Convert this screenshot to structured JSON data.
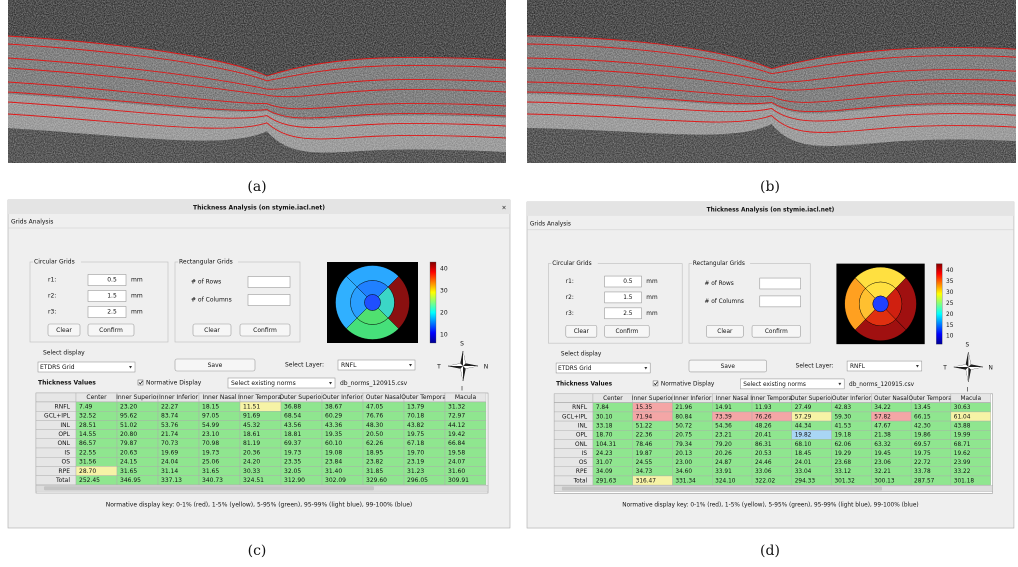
{
  "panels": [
    {
      "label": "(a)"
    },
    {
      "label": "(b)"
    },
    {
      "label": "(c)",
      "window_title": "Thickness Analysis (on stymie.iacl.net)",
      "close": "×",
      "menu": "Grids Analysis",
      "circular": {
        "title": "Circular Grids",
        "fields": [
          {
            "label": "r1:",
            "value": "0.5",
            "unit": "mm"
          },
          {
            "label": "r2:",
            "value": "1.5",
            "unit": "mm"
          },
          {
            "label": "r3:",
            "value": "2.5",
            "unit": "mm"
          }
        ],
        "buttons": [
          "Clear",
          "Confirm"
        ]
      },
      "rectangular": {
        "title": "Rectangular Grids",
        "fields": [
          "# of Rows",
          "# of Columns"
        ],
        "buttons": [
          "Clear",
          "Confirm"
        ]
      },
      "colorbar_ticks": [
        "40",
        "30",
        "20",
        "10"
      ],
      "select_display": "Select display",
      "display_value": "ETDRS Grid",
      "save": "Save",
      "select_layer": "Select Layer:",
      "layer_value": "RNFL",
      "compass": [
        "S",
        "T",
        "N",
        "I"
      ],
      "thickness_title": "Thickness Values",
      "normative": "Normative Display",
      "norms_dropdown": "Select existing norms",
      "norms_file": "db_norms_120915.csv",
      "table": {
        "cell_color": "#8fe68f",
        "header": [
          "",
          "Center",
          "Inner Superior",
          "Inner Inferior",
          "Inner Nasal",
          "Inner Temporal",
          "Outer Superior",
          "Outer Inferior",
          "Outer Nasal",
          "Outer Temporal",
          "Macula"
        ],
        "rows": [
          [
            "RNFL",
            "7.49",
            "23.20",
            "22.27",
            "18.15",
            {
              "value": "11.51",
              "color": "#f6f3a6"
            },
            "36.88",
            "38.67",
            "47.05",
            "13.79",
            "31.32"
          ],
          [
            "GCL+IPL",
            "32.52",
            "95.62",
            "83.74",
            "97.05",
            "91.69",
            "68.54",
            "60.29",
            "76.76",
            "70.18",
            "72.97"
          ],
          [
            "INL",
            "28.51",
            "51.02",
            "53.76",
            "54.99",
            "45.32",
            "43.56",
            "43.36",
            "48.30",
            "43.82",
            "44.12"
          ],
          [
            "OPL",
            "14.55",
            "20.80",
            "21.74",
            "23.10",
            "18.61",
            "18.81",
            "19.35",
            "20.50",
            "19.75",
            "19.42"
          ],
          [
            "ONL",
            "86.57",
            "79.87",
            "70.73",
            "70.98",
            "81.19",
            "69.37",
            "60.10",
            "62.26",
            "67.18",
            "66.84"
          ],
          [
            "IS",
            "22.55",
            "20.63",
            "19.69",
            "19.73",
            "20.36",
            "19.73",
            "19.08",
            "18.95",
            "19.70",
            "19.58"
          ],
          [
            "OS",
            "31.56",
            "24.15",
            "24.04",
            "25.06",
            "24.20",
            "23.35",
            "23.84",
            "23.82",
            "23.19",
            "24.07"
          ],
          [
            "RPE",
            {
              "value": "28.70",
              "color": "#f6f3a6"
            },
            "31.65",
            "31.14",
            "31.65",
            "30.33",
            "32.05",
            "31.40",
            "31.85",
            "31.23",
            "31.60"
          ],
          [
            "Total",
            "252.45",
            "346.95",
            "337.13",
            "340.73",
            "324.51",
            "312.90",
            "302.09",
            "329.60",
            "296.05",
            "309.91"
          ]
        ]
      },
      "key": "Normative display key: 0-1% (red), 1-5% (yellow), 5-95% (green), 95-99% (light blue), 99-100% (blue)"
    },
    {
      "label": "(d)",
      "window_title": "Thickness Analysis (on stymie.iacl.net)",
      "menu": "Grids Analysis",
      "circular": {
        "title": "Circular Grids",
        "fields": [
          {
            "label": "r1:",
            "value": "0.5",
            "unit": "mm"
          },
          {
            "label": "r2:",
            "value": "1.5",
            "unit": "mm"
          },
          {
            "label": "r3:",
            "value": "2.5",
            "unit": "mm"
          }
        ],
        "buttons": [
          "Clear",
          "Confirm"
        ]
      },
      "rectangular": {
        "title": "Rectangular Grids",
        "fields": [
          "# of Rows",
          "# of Columns"
        ],
        "buttons": [
          "Clear",
          "Confirm"
        ]
      },
      "colorbar_ticks": [
        "40",
        "35",
        "30",
        "25",
        "20",
        "15",
        "10"
      ],
      "select_display": "Select display",
      "display_value": "ETDRS Grid",
      "save": "Save",
      "select_layer": "Select Layer:",
      "layer_value": "RNFL",
      "compass": [
        "S",
        "T",
        "N",
        "I"
      ],
      "thickness_title": "Thickness Values",
      "normative": "Normative Display",
      "norms_dropdown": "Select existing norms",
      "norms_file": "db_norms_120915.csv",
      "table": {
        "cell_color": "#8fe68f",
        "header": [
          "",
          "Center",
          "Inner Superior",
          "Inner Inferior",
          "Inner Nasal",
          "Inner Temporal",
          "Outer Superior",
          "Outer Inferior",
          "Outer Nasal",
          "Outer Temporal",
          "Macula"
        ],
        "rows": [
          [
            "RNFL",
            "7.84",
            {
              "value": "15.35",
              "color": "#f4a6a6"
            },
            "21.96",
            "14.91",
            "11.93",
            "27.49",
            "42.83",
            "34.22",
            "13.45",
            "30.63"
          ],
          [
            "GCL+IPL",
            "30.10",
            {
              "value": "71.94",
              "color": "#f4a6a6"
            },
            "80.84",
            {
              "value": "73.39",
              "color": "#f4a6a6"
            },
            {
              "value": "76.26",
              "color": "#f4a6a6"
            },
            {
              "value": "57.29",
              "color": "#f6f3a6"
            },
            "59.30",
            {
              "value": "57.82",
              "color": "#f4a6a6"
            },
            "66.15",
            {
              "value": "61.04",
              "color": "#f6f3a6"
            }
          ],
          [
            "INL",
            "33.18",
            "51.22",
            "50.72",
            "54.36",
            "48.26",
            "44.34",
            "41.53",
            "47.67",
            "42.30",
            "43.88"
          ],
          [
            "OPL",
            "18.70",
            "22.36",
            "20.75",
            "23.21",
            "20.41",
            {
              "value": "19.82",
              "color": "#a9d6f5"
            },
            "19.18",
            "21.38",
            "19.86",
            "19.99"
          ],
          [
            "ONL",
            "104.31",
            "78.46",
            "79.34",
            "79.20",
            "86.31",
            "68.10",
            "62.06",
            "63.32",
            "69.57",
            "68.71"
          ],
          [
            "IS",
            "24.23",
            "19.87",
            "20.13",
            "20.26",
            "20.53",
            "18.45",
            "19.29",
            "19.45",
            "19.75",
            "19.62"
          ],
          [
            "OS",
            "31.07",
            "24.55",
            "23.00",
            "24.87",
            "24.46",
            "24.01",
            "23.68",
            "23.06",
            "22.72",
            "23.99"
          ],
          [
            "RPE",
            "34.09",
            "34.73",
            "34.60",
            "33.91",
            "33.06",
            "33.04",
            "33.12",
            "32.21",
            "33.78",
            "33.22"
          ],
          [
            "Total",
            "291.63",
            {
              "value": "316.47",
              "color": "#f6f3a6"
            },
            "331.34",
            "324.10",
            "322.02",
            "294.33",
            "301.32",
            "300.13",
            "287.57",
            "301.18"
          ]
        ]
      },
      "key": "Normative display key: 0-1% (red), 1-5% (yellow), 5-95% (green), 95-99% (light blue), 99-100% (blue)"
    }
  ]
}
